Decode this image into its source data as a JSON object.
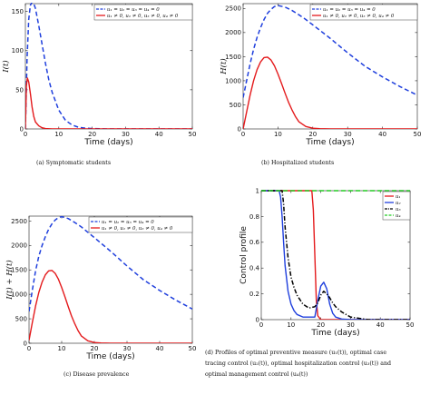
{
  "captions": {
    "a": "(a) Symptomatic students",
    "b": "(b) Hospitalized students",
    "c": "(c) Disease prevalence",
    "d_lines": [
      "(d) Profiles of optimal preventive measure (u₁(t)), optimal case",
      "tracing control (u₂(t)), optimal hospitalization control (u₃(t)) and",
      "optimal management control (u₄(t))"
    ]
  },
  "colors": {
    "blue": "#1f3fdd",
    "red": "#e41a1c",
    "black": "#000000",
    "green": "#22cc22"
  },
  "chart_data": [
    {
      "id": "a",
      "type": "line",
      "xlabel": "Time (days)",
      "ylabel": "I(t)",
      "xlim": [
        0,
        50
      ],
      "ylim": [
        0,
        160
      ],
      "xticks": [
        0,
        10,
        20,
        30,
        40,
        50
      ],
      "yticks": [
        0,
        50,
        100,
        150
      ],
      "legend_position": "top-right",
      "series": [
        {
          "name": "u₁ = u₂ = u₃ = u₄ = 0",
          "style": "dashed",
          "color": "#1f3fdd",
          "x": [
            0,
            0.5,
            1,
            1.5,
            2,
            2.5,
            3,
            4,
            5,
            6,
            7,
            8,
            10,
            12,
            14,
            16,
            18,
            20,
            25,
            30,
            40,
            50
          ],
          "y": [
            0,
            90,
            140,
            158,
            162,
            160,
            154,
            132,
            108,
            84,
            63,
            47,
            24,
            11,
            5,
            2,
            1,
            0.5,
            0,
            0,
            0,
            0
          ]
        },
        {
          "name": "u₁ ≠ 0, u₂ ≠ 0, u₃ ≠ 0, u₄ ≠ 0",
          "style": "solid",
          "color": "#e41a1c",
          "x": [
            0,
            0.3,
            0.6,
            1,
            1.5,
            2,
            2.5,
            3,
            4,
            5,
            6,
            8,
            10,
            50
          ],
          "y": [
            0,
            55,
            65,
            60,
            45,
            28,
            16,
            9,
            4,
            1.5,
            0.5,
            0,
            0,
            0
          ]
        }
      ]
    },
    {
      "id": "b",
      "type": "line",
      "xlabel": "Time (days)",
      "ylabel": "H(t)",
      "xlim": [
        0,
        50
      ],
      "ylim": [
        0,
        2600
      ],
      "xticks": [
        0,
        10,
        20,
        30,
        40,
        50
      ],
      "yticks": [
        0,
        500,
        1000,
        1500,
        2000,
        2500
      ],
      "legend_position": "top-right",
      "series": [
        {
          "name": "u₁ = u₂ = u₃ = u₄ = 0",
          "style": "dashed",
          "color": "#1f3fdd",
          "x": [
            0,
            1,
            2,
            3,
            4,
            5,
            6,
            7,
            8,
            9,
            10,
            12,
            14,
            16,
            18,
            20,
            25,
            30,
            35,
            40,
            45,
            50
          ],
          "y": [
            650,
            1000,
            1350,
            1650,
            1900,
            2100,
            2270,
            2400,
            2480,
            2540,
            2560,
            2530,
            2460,
            2370,
            2270,
            2160,
            1880,
            1580,
            1300,
            1080,
            880,
            700
          ]
        },
        {
          "name": "u₁ ≠ 0, u₂ ≠ 0, u₃ ≠ 0, u₄ ≠ 0",
          "style": "solid",
          "color": "#e41a1c",
          "x": [
            0,
            1,
            2,
            3,
            4,
            5,
            6,
            7,
            8,
            9,
            10,
            11,
            12,
            13,
            14,
            15,
            16,
            18,
            20,
            22,
            25,
            50
          ],
          "y": [
            0,
            350,
            700,
            1000,
            1230,
            1390,
            1480,
            1490,
            1430,
            1310,
            1140,
            950,
            750,
            560,
            400,
            260,
            150,
            50,
            15,
            5,
            0,
            0
          ]
        }
      ]
    },
    {
      "id": "c",
      "type": "line",
      "xlabel": "Time (days)",
      "ylabel": "I(t) + H(t)",
      "xlim": [
        0,
        50
      ],
      "ylim": [
        0,
        2600
      ],
      "xticks": [
        0,
        10,
        20,
        30,
        40,
        50
      ],
      "yticks": [
        0,
        500,
        1000,
        1500,
        2000,
        2500
      ],
      "legend_position": "top-right",
      "series": [
        {
          "name": "u₁ = u₂ = u₃ = u₄ = 0",
          "style": "dashed",
          "color": "#1f3fdd",
          "x": [
            0,
            1,
            2,
            3,
            4,
            5,
            6,
            7,
            8,
            9,
            10,
            12,
            14,
            16,
            18,
            20,
            25,
            30,
            35,
            40,
            45,
            50
          ],
          "y": [
            650,
            1080,
            1480,
            1780,
            2000,
            2180,
            2330,
            2440,
            2520,
            2570,
            2590,
            2550,
            2470,
            2380,
            2270,
            2160,
            1880,
            1580,
            1300,
            1080,
            880,
            700
          ]
        },
        {
          "name": "u₁ ≠ 0, u₂ ≠ 0, u₃ ≠ 0, u₄ ≠ 0",
          "style": "solid",
          "color": "#e41a1c",
          "x": [
            0,
            1,
            2,
            3,
            4,
            5,
            6,
            7,
            8,
            9,
            10,
            11,
            12,
            13,
            14,
            15,
            16,
            18,
            20,
            22,
            25,
            50
          ],
          "y": [
            60,
            420,
            760,
            1040,
            1250,
            1400,
            1480,
            1490,
            1430,
            1310,
            1140,
            950,
            750,
            560,
            400,
            260,
            150,
            50,
            15,
            5,
            0,
            0
          ]
        }
      ]
    },
    {
      "id": "d",
      "type": "line",
      "xlabel": "Time (days)",
      "ylabel": "Control profile",
      "xlim": [
        0,
        50
      ],
      "ylim": [
        0,
        1
      ],
      "xticks": [
        0,
        10,
        20,
        30,
        40,
        50
      ],
      "yticks": [
        0,
        0.2,
        0.4,
        0.6,
        0.8,
        1
      ],
      "legend_position": "top-right",
      "series": [
        {
          "name": "u₁",
          "style": "solid",
          "color": "#e41a1c",
          "x": [
            0,
            16,
            17,
            17.5,
            18,
            18.5,
            19,
            20,
            50
          ],
          "y": [
            1,
            1,
            1,
            0.85,
            0.5,
            0.15,
            0.03,
            0,
            0
          ]
        },
        {
          "name": "u₂",
          "style": "solid",
          "color": "#1f3fdd",
          "x": [
            0,
            6,
            6.5,
            7,
            7.5,
            8,
            9,
            10,
            11,
            12,
            14,
            18,
            19,
            20,
            21,
            22,
            23,
            24,
            25,
            27,
            30,
            50
          ],
          "y": [
            1,
            1,
            0.95,
            0.8,
            0.6,
            0.42,
            0.22,
            0.12,
            0.07,
            0.04,
            0.02,
            0.02,
            0.15,
            0.26,
            0.29,
            0.24,
            0.12,
            0.05,
            0.02,
            0.005,
            0,
            0
          ]
        },
        {
          "name": "u₃",
          "style": "dashdot",
          "color": "#000000",
          "x": [
            0,
            7,
            7.5,
            8,
            9,
            10,
            11,
            12,
            14,
            16,
            18,
            19,
            20,
            21,
            22,
            23,
            24,
            25,
            27,
            30,
            33,
            36,
            40,
            50
          ],
          "y": [
            1,
            1,
            0.9,
            0.72,
            0.48,
            0.33,
            0.25,
            0.19,
            0.12,
            0.09,
            0.1,
            0.13,
            0.19,
            0.22,
            0.2,
            0.17,
            0.13,
            0.1,
            0.06,
            0.02,
            0.01,
            0,
            0,
            0
          ]
        },
        {
          "name": "u₄",
          "style": "dashed",
          "color": "#22cc22",
          "x": [
            0,
            50
          ],
          "y": [
            1,
            1
          ]
        }
      ]
    }
  ]
}
